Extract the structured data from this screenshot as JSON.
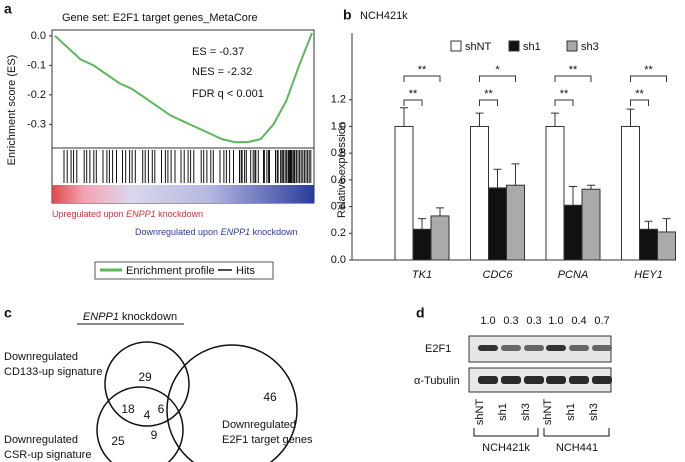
{
  "chart_data": [
    {
      "type": "line",
      "panel": "a",
      "title": "Gene set: E2F1 target genes_MetaCore",
      "y_label": "Enrichment score (ES)",
      "values": [
        0,
        -0.04,
        -0.08,
        -0.1,
        -0.13,
        -0.16,
        -0.18,
        -0.21,
        -0.24,
        -0.27,
        -0.29,
        -0.31,
        -0.33,
        -0.35,
        -0.36,
        -0.36,
        -0.35,
        -0.3,
        -0.22,
        -0.1,
        0.01
      ],
      "color": "#5cb85c",
      "ylim": [
        -0.38,
        0.02
      ],
      "yticks": [
        {
          "value": 0,
          "label": "0.0"
        },
        -0.1,
        -0.2,
        -0.3
      ],
      "annotations": [
        "ES = -0.37",
        "NES = -2.32",
        "FDR q < 0.001"
      ],
      "up_label": [
        "Upregulated upon ",
        "ENPP1",
        " knockdown"
      ],
      "down_label": [
        "Downregulated upon ",
        "ENPP1",
        " knockdown"
      ],
      "legend": [
        "Enrichment profile",
        "Hits"
      ]
    },
    {
      "type": "bar",
      "panel": "b",
      "title": "NCH421k",
      "y_label": "Relative expression",
      "categories": [
        "TK1",
        "CDC6",
        "PCNA",
        "HEY1"
      ],
      "series": [
        {
          "name": "shNT",
          "color": "#ffffff",
          "values": [
            1.0,
            1.0,
            1.0,
            1.0
          ],
          "errors": [
            0.14,
            0.1,
            0.1,
            0.13
          ]
        },
        {
          "name": "sh1",
          "color": "#111111",
          "values": [
            0.23,
            0.54,
            0.41,
            0.23
          ],
          "errors": [
            0.08,
            0.14,
            0.14,
            0.06
          ]
        },
        {
          "name": "sh3",
          "color": "#aaaaaa",
          "values": [
            0.33,
            0.56,
            0.53,
            0.21
          ],
          "errors": [
            0.06,
            0.16,
            0.03,
            0.1
          ]
        }
      ],
      "significance": [
        [
          "**",
          "**"
        ],
        [
          "**",
          "*"
        ],
        [
          "**",
          "**"
        ],
        [
          "**",
          "**"
        ]
      ],
      "ylim": [
        0,
        1.7
      ],
      "yticks": [
        {
          "value": 0,
          "label": "0.0"
        },
        0.2,
        0.4,
        0.6,
        0.8,
        {
          "value": 1,
          "label": "1.0"
        },
        1.2
      ]
    }
  ],
  "venn": {
    "panel": "c",
    "title": "ENPP1 knockdown",
    "sets": [
      [
        "Downregulated",
        "CD133-up signature"
      ],
      [
        "Downregulated",
        "CSR-up signature"
      ],
      [
        "Downregulated",
        "E2F1 target genes"
      ]
    ],
    "regions": [
      "29",
      "6",
      "18",
      "4",
      "46",
      "25",
      "9"
    ]
  },
  "blot": {
    "panel": "d",
    "ratios": [
      "1.0",
      "0.3",
      "0.3",
      "1.0",
      "0.4",
      "0.7"
    ],
    "bands": [
      "E2F1",
      "α-Tubulin"
    ],
    "lanes": [
      "shNT",
      "sh1",
      "sh3",
      "shNT",
      "sh1",
      "sh3"
    ],
    "cell_lines": [
      "NCH421k",
      "NCH441"
    ]
  }
}
